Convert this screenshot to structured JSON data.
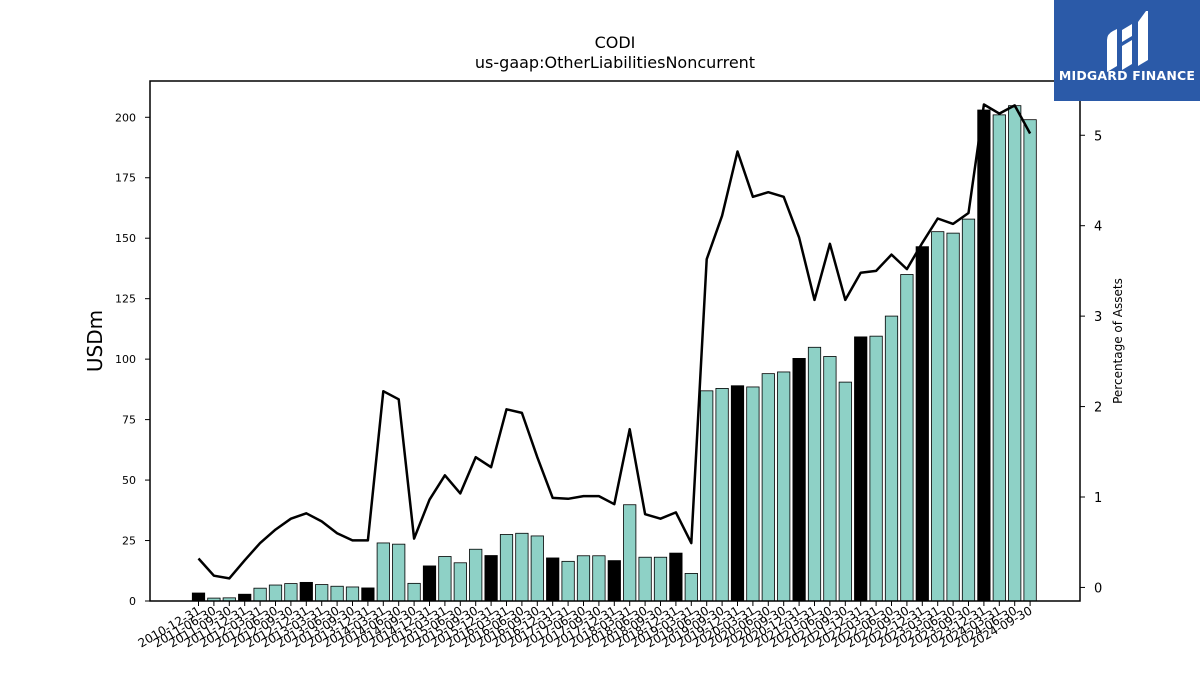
{
  "chart_data": {
    "type": "bar+line",
    "title": "CODI",
    "subtitle": "us-gaap:OtherLiabilitiesNoncurrent",
    "ylabel_left": "USDm",
    "ylabel_right": "Percentage of Assets",
    "ylim_left": [
      0,
      215
    ],
    "ylim_right": [
      -0.15,
      5.6
    ],
    "yticks_left": [
      0,
      25,
      50,
      75,
      100,
      125,
      150,
      175,
      200
    ],
    "yticks_right": [
      0,
      1,
      2,
      3,
      4,
      5
    ],
    "categories": [
      "2010-12-31",
      "2011-06-30",
      "2011-09-30",
      "2011-12-31",
      "2012-03-31",
      "2012-06-30",
      "2012-09-30",
      "2012-12-31",
      "2013-03-31",
      "2013-06-30",
      "2013-09-30",
      "2013-12-31",
      "2014-03-31",
      "2014-06-30",
      "2014-09-30",
      "2014-12-31",
      "2015-03-31",
      "2015-06-30",
      "2015-09-30",
      "2015-12-31",
      "2016-03-31",
      "2016-06-30",
      "2016-09-30",
      "2016-12-31",
      "2017-03-31",
      "2017-06-30",
      "2017-09-30",
      "2017-12-31",
      "2018-03-31",
      "2018-06-30",
      "2018-09-30",
      "2018-12-31",
      "2019-03-31",
      "2019-06-30",
      "2019-09-30",
      "2019-12-31",
      "2020-03-31",
      "2020-06-30",
      "2020-09-30",
      "2020-12-31",
      "2021-03-31",
      "2021-06-30",
      "2021-09-30",
      "2021-12-31",
      "2022-03-31",
      "2022-06-30",
      "2022-09-30",
      "2022-12-31",
      "2023-03-31",
      "2023-06-30",
      "2023-09-30",
      "2023-12-31",
      "2024-03-31",
      "2024-06-30",
      "2024-09-30"
    ],
    "series": [
      {
        "kind": "bar",
        "values": [
          3.3,
          1.2,
          1.3,
          2.8,
          5.3,
          6.6,
          7.2,
          7.7,
          6.8,
          6.1,
          5.8,
          5.4,
          24.0,
          23.5,
          7.3,
          14.5,
          18.4,
          15.8,
          21.4,
          18.8,
          27.5,
          28.0,
          26.9,
          17.8,
          16.4,
          18.7,
          18.7,
          16.7,
          39.8,
          18.1,
          18.1,
          19.8,
          11.4,
          86.9,
          87.9,
          89.0,
          88.5,
          94.0,
          94.7,
          100.3,
          104.9,
          101.1,
          90.5,
          109.2,
          109.5,
          117.8,
          135.0,
          146.5,
          152.7,
          152.1,
          157.9,
          203.0,
          201.0,
          204.8,
          199.0
        ],
        "highlight_indices": [
          0,
          3,
          7,
          11,
          15,
          19,
          23,
          27,
          31,
          35,
          39,
          43,
          47,
          51
        ],
        "color": "#8ed1c6",
        "highlight_color": "#000000"
      },
      {
        "kind": "line",
        "axis": "right",
        "values": [
          0.32,
          0.13,
          0.1,
          0.3,
          0.49,
          0.64,
          0.76,
          0.82,
          0.73,
          0.6,
          0.52,
          0.52,
          2.17,
          2.08,
          0.54,
          0.97,
          1.24,
          1.04,
          1.44,
          1.33,
          1.97,
          1.93,
          1.44,
          0.99,
          0.98,
          1.01,
          1.01,
          0.92,
          1.75,
          0.81,
          0.76,
          0.83,
          0.49,
          3.63,
          4.11,
          4.82,
          4.32,
          4.37,
          4.32,
          3.87,
          3.18,
          3.8,
          3.18,
          3.48,
          3.5,
          3.68,
          3.52,
          3.81,
          4.08,
          4.02,
          4.14,
          5.34,
          5.24,
          5.33,
          5.02
        ],
        "color": "#000000"
      }
    ]
  },
  "logo": {
    "text": "MIDGARD FINANCE",
    "background": "#2b5aa8"
  }
}
